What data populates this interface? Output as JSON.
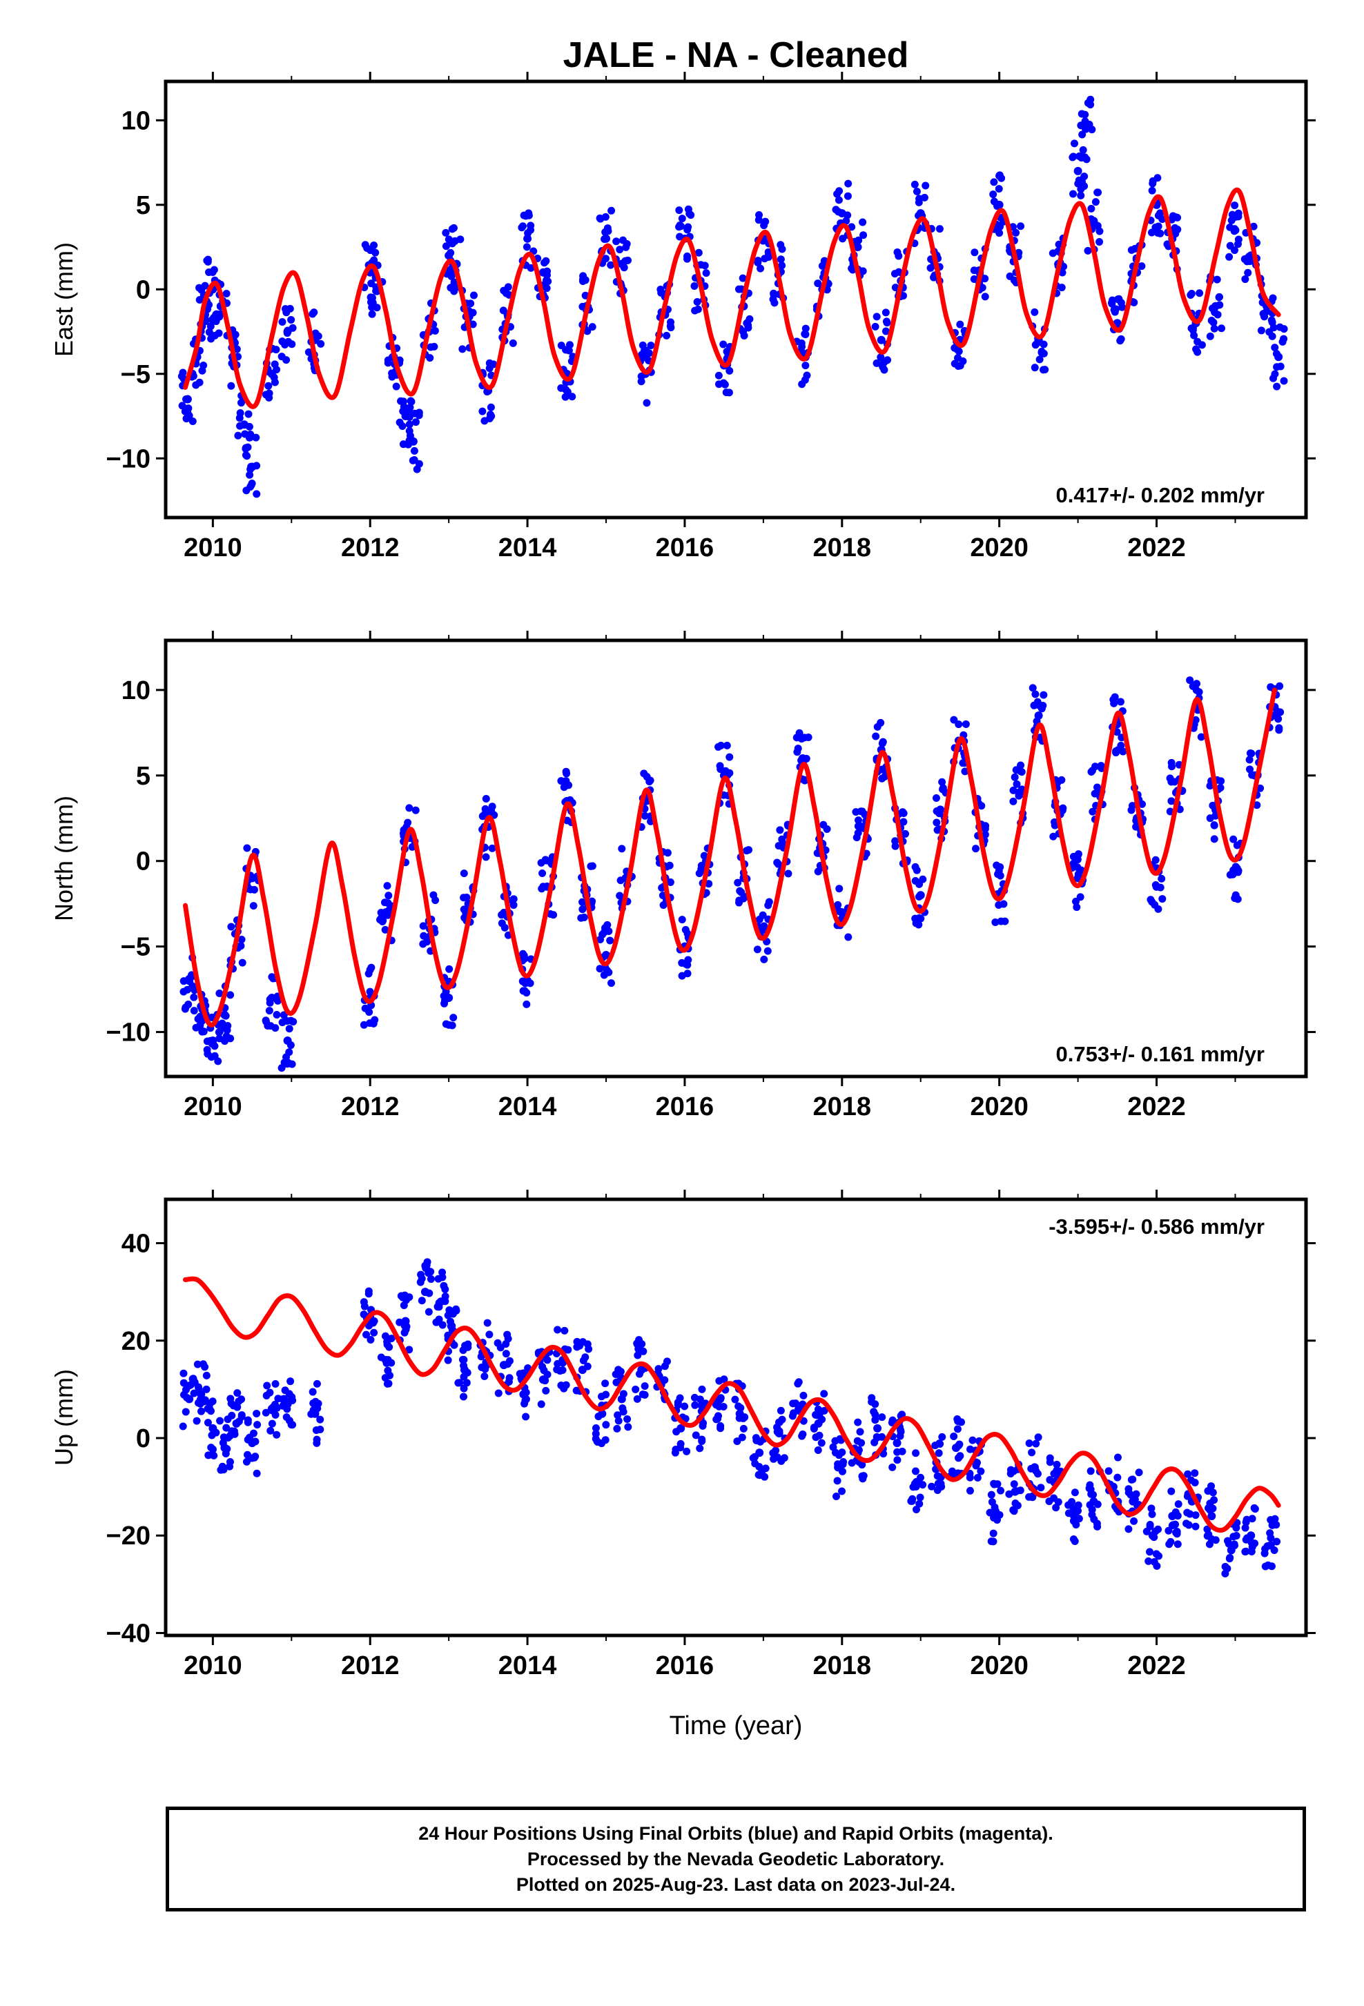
{
  "title": "JALE  - NA - Cleaned",
  "xlabel": "Time (year)",
  "footer": {
    "line1": "24 Hour Positions Using Final Orbits (blue) and Rapid Orbits (magenta).",
    "line2": "Processed by the Nevada Geodetic Laboratory.",
    "line3": "Plotted on 2025-Aug-23. Last data on 2023-Jul-24."
  },
  "colors": {
    "points": "#0000ff",
    "fit": "#ff0000",
    "frame": "#000000"
  },
  "chart_data": [
    {
      "type": "scatter",
      "ylabel": "East (mm)",
      "annotation": "0.417+/- 0.202 mm/yr",
      "annotation_position": "bottom-right",
      "xlim": [
        2009.4,
        2023.9
      ],
      "ylim": [
        -13.5,
        12.3
      ],
      "xticks": [
        2010,
        2012,
        2014,
        2016,
        2018,
        2020,
        2022
      ],
      "yticks": [
        -10,
        -5,
        0,
        5,
        10
      ],
      "series": [
        {
          "style": "points",
          "x": [
            2009.68,
            2009.8,
            2009.9,
            2010.0,
            2010.1,
            2010.25,
            2010.4,
            2010.5,
            2010.75,
            2010.95,
            2011.3,
            2012.0,
            2012.1,
            2012.3,
            2012.45,
            2012.55,
            2012.75,
            2013.0,
            2013.1,
            2013.25,
            2013.5,
            2013.75,
            2014.0,
            2014.2,
            2014.5,
            2014.75,
            2015.0,
            2015.2,
            2015.5,
            2015.75,
            2016.0,
            2016.2,
            2016.5,
            2016.75,
            2017.0,
            2017.2,
            2017.5,
            2017.75,
            2018.0,
            2018.2,
            2018.5,
            2018.75,
            2019.0,
            2019.2,
            2019.5,
            2019.75,
            2020.0,
            2020.2,
            2020.5,
            2020.75,
            2021.0,
            2021.1,
            2021.2,
            2021.5,
            2021.75,
            2022.0,
            2022.2,
            2022.5,
            2022.75,
            2023.0,
            2023.2,
            2023.4,
            2023.55
          ],
          "y": [
            -6.5,
            -4.0,
            -1.5,
            0.0,
            -1.0,
            -4.0,
            -8.0,
            -10.5,
            -5.0,
            -2.5,
            -3.0,
            1.0,
            0.0,
            -4.0,
            -7.5,
            -9.0,
            -2.5,
            2.0,
            1.5,
            -2.0,
            -6.0,
            -1.5,
            3.0,
            1.0,
            -5.0,
            -1.0,
            3.0,
            1.5,
            -5.0,
            -1.5,
            3.0,
            0.5,
            -4.5,
            -1.0,
            3.0,
            1.0,
            -4.0,
            0.0,
            4.5,
            2.5,
            -3.0,
            0.5,
            4.5,
            2.0,
            -3.0,
            1.0,
            5.0,
            2.0,
            -3.0,
            1.5,
            7.0,
            9.5,
            4.0,
            -2.0,
            1.0,
            5.0,
            3.0,
            -2.0,
            -1.0,
            3.5,
            2.0,
            -1.0,
            -4.0
          ]
        },
        {
          "style": "fit",
          "x": [
            2009.65,
            2009.8,
            2009.9,
            2010.05,
            2010.2,
            2010.35,
            2010.55,
            2010.75,
            2010.9,
            2011.05,
            2011.2,
            2011.35,
            2011.55,
            2011.75,
            2011.9,
            2012.05,
            2012.2,
            2012.35,
            2012.55,
            2012.75,
            2012.9,
            2013.05,
            2013.2,
            2013.35,
            2013.55,
            2013.75,
            2013.9,
            2014.05,
            2014.2,
            2014.35,
            2014.55,
            2014.75,
            2014.9,
            2015.05,
            2015.2,
            2015.35,
            2015.55,
            2015.75,
            2015.9,
            2016.05,
            2016.2,
            2016.35,
            2016.55,
            2016.75,
            2016.9,
            2017.05,
            2017.2,
            2017.35,
            2017.55,
            2017.75,
            2017.9,
            2018.05,
            2018.2,
            2018.35,
            2018.55,
            2018.75,
            2018.9,
            2019.05,
            2019.2,
            2019.35,
            2019.55,
            2019.75,
            2019.9,
            2020.05,
            2020.2,
            2020.35,
            2020.55,
            2020.75,
            2020.9,
            2021.05,
            2021.2,
            2021.35,
            2021.55,
            2021.75,
            2021.9,
            2022.05,
            2022.2,
            2022.35,
            2022.55,
            2022.75,
            2022.9,
            2023.05,
            2023.2,
            2023.35,
            2023.55
          ],
          "y": [
            -5.8,
            -3.3,
            -0.7,
            0.3,
            -2.4,
            -5.7,
            -6.8,
            -2.8,
            0.1,
            0.9,
            -1.7,
            -5.0,
            -6.3,
            -2.4,
            0.5,
            1.3,
            -1.3,
            -4.7,
            -6.1,
            -2.2,
            0.7,
            1.6,
            -1.0,
            -4.4,
            -5.7,
            -1.8,
            1.1,
            2.0,
            -0.6,
            -4.0,
            -5.2,
            -1.3,
            1.6,
            2.5,
            -0.1,
            -3.5,
            -4.8,
            -0.9,
            2.0,
            2.9,
            0.3,
            -3.0,
            -4.4,
            -0.5,
            2.4,
            3.3,
            0.6,
            -2.8,
            -4.0,
            -0.1,
            2.8,
            3.7,
            1.0,
            -2.4,
            -3.6,
            0.3,
            3.2,
            4.1,
            1.4,
            -2.0,
            -3.2,
            0.7,
            3.6,
            4.6,
            1.9,
            -1.5,
            -2.7,
            1.2,
            4.1,
            5.0,
            2.3,
            -1.1,
            -2.3,
            1.6,
            4.5,
            5.4,
            2.7,
            -0.6,
            -1.8,
            2.0,
            4.9,
            5.8,
            3.1,
            -0.2,
            -1.5
          ]
        }
      ]
    },
    {
      "type": "scatter",
      "ylabel": "North (mm)",
      "annotation": "0.753+/- 0.161 mm/yr",
      "annotation_position": "bottom-right",
      "xlim": [
        2009.4,
        2023.9
      ],
      "ylim": [
        -12.6,
        12.9
      ],
      "xticks": [
        2010,
        2012,
        2014,
        2016,
        2018,
        2020,
        2022
      ],
      "yticks": [
        -10,
        -5,
        0,
        5,
        10
      ],
      "series": [
        {
          "style": "points",
          "x": [
            2009.7,
            2009.85,
            2010.0,
            2010.15,
            2010.3,
            2010.5,
            2010.75,
            2010.95,
            2012.0,
            2012.2,
            2012.5,
            2012.75,
            2013.0,
            2013.25,
            2013.5,
            2013.75,
            2014.0,
            2014.25,
            2014.5,
            2014.75,
            2015.0,
            2015.25,
            2015.5,
            2015.75,
            2016.0,
            2016.25,
            2016.5,
            2016.75,
            2017.0,
            2017.25,
            2017.5,
            2017.75,
            2018.0,
            2018.25,
            2018.5,
            2018.75,
            2019.0,
            2019.25,
            2019.5,
            2019.75,
            2020.0,
            2020.25,
            2020.5,
            2020.75,
            2021.0,
            2021.25,
            2021.5,
            2021.75,
            2022.0,
            2022.25,
            2022.5,
            2022.75,
            2023.0,
            2023.25,
            2023.5
          ],
          "y": [
            -7.0,
            -8.5,
            -10.5,
            -9.0,
            -5.0,
            -1.0,
            -8.0,
            -10.5,
            -8.0,
            -3.0,
            1.5,
            -3.5,
            -8.0,
            -2.5,
            2.0,
            -3.0,
            -7.0,
            -1.5,
            3.5,
            -2.0,
            -5.5,
            -1.0,
            3.5,
            -1.0,
            -5.0,
            -0.5,
            5.0,
            -1.0,
            -4.0,
            1.0,
            6.0,
            1.0,
            -3.0,
            2.0,
            6.5,
            1.5,
            -2.0,
            3.0,
            7.0,
            2.0,
            -2.0,
            4.0,
            8.5,
            3.0,
            -1.0,
            4.0,
            8.0,
            2.5,
            -1.5,
            4.0,
            9.0,
            3.0,
            -0.5,
            5.0,
            9.0
          ]
        },
        {
          "style": "fit",
          "x": [
            2009.65,
            2009.8,
            2009.95,
            2010.1,
            2010.3,
            2010.5,
            2010.65,
            2010.8,
            2010.95,
            2011.1,
            2011.3,
            2011.5,
            2011.65,
            2011.8,
            2011.95,
            2012.1,
            2012.3,
            2012.5,
            2012.65,
            2012.8,
            2012.95,
            2013.1,
            2013.3,
            2013.5,
            2013.65,
            2013.8,
            2013.95,
            2014.1,
            2014.3,
            2014.5,
            2014.65,
            2014.8,
            2014.95,
            2015.1,
            2015.3,
            2015.5,
            2015.65,
            2015.8,
            2015.95,
            2016.1,
            2016.3,
            2016.5,
            2016.65,
            2016.8,
            2016.95,
            2017.1,
            2017.3,
            2017.5,
            2017.65,
            2017.8,
            2017.95,
            2018.1,
            2018.3,
            2018.5,
            2018.65,
            2018.8,
            2018.95,
            2019.1,
            2019.3,
            2019.5,
            2019.65,
            2019.8,
            2019.95,
            2020.1,
            2020.3,
            2020.5,
            2020.65,
            2020.8,
            2020.95,
            2021.1,
            2021.3,
            2021.5,
            2021.65,
            2021.8,
            2021.95,
            2022.1,
            2022.3,
            2022.5,
            2022.65,
            2022.8,
            2022.95,
            2023.1,
            2023.3,
            2023.5
          ],
          "y": [
            -2.6,
            -7.0,
            -9.5,
            -8.6,
            -4.6,
            0.3,
            -2.3,
            -6.3,
            -8.8,
            -8.0,
            -3.8,
            1.0,
            -1.5,
            -5.5,
            -8.1,
            -7.3,
            -3.0,
            1.8,
            -0.7,
            -4.8,
            -7.3,
            -6.5,
            -2.3,
            2.5,
            0.0,
            -4.0,
            -6.6,
            -5.8,
            -1.5,
            3.3,
            0.8,
            -3.3,
            -5.9,
            -5.1,
            -0.8,
            4.1,
            1.6,
            -2.5,
            -5.1,
            -4.3,
            0.0,
            4.8,
            2.3,
            -1.7,
            -4.4,
            -3.6,
            0.7,
            5.6,
            3.1,
            -1.0,
            -3.6,
            -2.8,
            1.5,
            6.3,
            3.8,
            -0.2,
            -2.8,
            -2.1,
            2.3,
            7.1,
            4.6,
            0.5,
            -2.1,
            -1.3,
            3.0,
            7.9,
            5.4,
            1.3,
            -1.3,
            -0.6,
            3.8,
            8.6,
            6.2,
            2.1,
            -0.6,
            0.2,
            4.5,
            9.4,
            6.9,
            2.8,
            0.2,
            0.9,
            5.3,
            10.0
          ]
        }
      ]
    },
    {
      "type": "scatter",
      "ylabel": "Up (mm)",
      "annotation": "-3.595+/- 0.586 mm/yr",
      "annotation_position": "top-right",
      "xlim": [
        2009.4,
        2023.9
      ],
      "ylim": [
        -40.5,
        49
      ],
      "xticks": [
        2010,
        2012,
        2014,
        2016,
        2018,
        2020,
        2022
      ],
      "yticks": [
        -40,
        -20,
        0,
        20,
        40
      ],
      "series": [
        {
          "style": "points",
          "x": [
            2009.7,
            2009.85,
            2010.0,
            2010.15,
            2010.3,
            2010.5,
            2010.75,
            2010.95,
            2011.3,
            2012.0,
            2012.2,
            2012.45,
            2012.7,
            2012.9,
            2013.05,
            2013.2,
            2013.45,
            2013.7,
            2013.95,
            2014.2,
            2014.45,
            2014.7,
            2014.95,
            2015.2,
            2015.45,
            2015.7,
            2015.95,
            2016.2,
            2016.45,
            2016.7,
            2016.95,
            2017.2,
            2017.45,
            2017.7,
            2017.95,
            2018.2,
            2018.45,
            2018.7,
            2018.95,
            2019.2,
            2019.45,
            2019.7,
            2019.95,
            2020.2,
            2020.45,
            2020.7,
            2020.95,
            2021.2,
            2021.45,
            2021.7,
            2021.95,
            2022.2,
            2022.45,
            2022.7,
            2022.95,
            2023.2,
            2023.45
          ],
          "y": [
            8.0,
            9.0,
            2.0,
            -2.0,
            3.0,
            -1.0,
            6.0,
            7.0,
            5.0,
            25.0,
            16.0,
            24.0,
            30.0,
            28.0,
            22.0,
            14.0,
            18.0,
            15.0,
            9.0,
            12.0,
            16.0,
            14.0,
            5.0,
            8.0,
            14.0,
            11.0,
            2.0,
            4.0,
            8.0,
            5.0,
            -3.0,
            1.0,
            6.0,
            3.0,
            -6.0,
            -3.0,
            2.0,
            -1.0,
            -9.0,
            -5.0,
            -2.0,
            -5.0,
            -15.0,
            -11.0,
            -6.0,
            -9.0,
            -17.0,
            -13.0,
            -10.0,
            -13.0,
            -20.0,
            -16.0,
            -13.0,
            -16.0,
            -23.0,
            -20.0,
            -22.0
          ]
        },
        {
          "style": "fit",
          "x": [
            2009.65,
            2009.8,
            2009.95,
            2010.1,
            2010.25,
            2010.4,
            2010.55,
            2010.7,
            2010.85,
            2011.0,
            2011.15,
            2011.3,
            2011.45,
            2011.6,
            2011.75,
            2011.9,
            2012.05,
            2012.2,
            2012.35,
            2012.5,
            2012.65,
            2012.8,
            2012.95,
            2013.1,
            2013.25,
            2013.4,
            2013.55,
            2013.7,
            2013.85,
            2014.0,
            2014.15,
            2014.3,
            2014.45,
            2014.6,
            2014.75,
            2014.9,
            2015.05,
            2015.2,
            2015.35,
            2015.5,
            2015.65,
            2015.8,
            2015.95,
            2016.1,
            2016.25,
            2016.4,
            2016.55,
            2016.7,
            2016.85,
            2017.0,
            2017.15,
            2017.3,
            2017.45,
            2017.6,
            2017.75,
            2017.9,
            2018.05,
            2018.2,
            2018.35,
            2018.5,
            2018.65,
            2018.8,
            2018.95,
            2019.1,
            2019.25,
            2019.4,
            2019.55,
            2019.7,
            2019.85,
            2020.0,
            2020.15,
            2020.3,
            2020.45,
            2020.6,
            2020.75,
            2020.9,
            2021.05,
            2021.2,
            2021.35,
            2021.5,
            2021.65,
            2021.8,
            2021.95,
            2022.1,
            2022.25,
            2022.4,
            2022.55,
            2022.7,
            2022.85,
            2023.0,
            2023.15,
            2023.3,
            2023.45,
            2023.55
          ],
          "y": [
            32.5,
            32.5,
            30.0,
            26.5,
            22.7,
            20.7,
            21.7,
            25.2,
            28.6,
            29.0,
            26.2,
            21.9,
            18.2,
            17.0,
            19.2,
            23.0,
            25.7,
            24.7,
            20.5,
            15.8,
            13.1,
            14.2,
            18.1,
            21.8,
            22.4,
            19.4,
            14.7,
            10.8,
            9.9,
            12.4,
            16.2,
            18.6,
            17.4,
            13.0,
            8.4,
            6.0,
            7.2,
            11.1,
            14.6,
            15.0,
            11.9,
            7.2,
            3.5,
            2.7,
            5.2,
            9.0,
            11.2,
            9.9,
            5.5,
            1.0,
            -1.4,
            -0.2,
            3.8,
            7.3,
            7.6,
            4.5,
            -0.2,
            -3.8,
            -4.5,
            -2.1,
            1.8,
            4.0,
            2.7,
            -1.6,
            -6.2,
            -8.5,
            -7.2,
            -3.2,
            0.2,
            0.5,
            -2.6,
            -7.3,
            -11.0,
            -11.7,
            -9.1,
            -5.2,
            -3.1,
            -4.4,
            -8.8,
            -13.4,
            -15.6,
            -14.3,
            -10.4,
            -6.9,
            -6.6,
            -9.7,
            -14.4,
            -18.1,
            -18.8,
            -16.2,
            -12.4,
            -10.3,
            -11.6,
            -13.8
          ]
        }
      ]
    }
  ]
}
